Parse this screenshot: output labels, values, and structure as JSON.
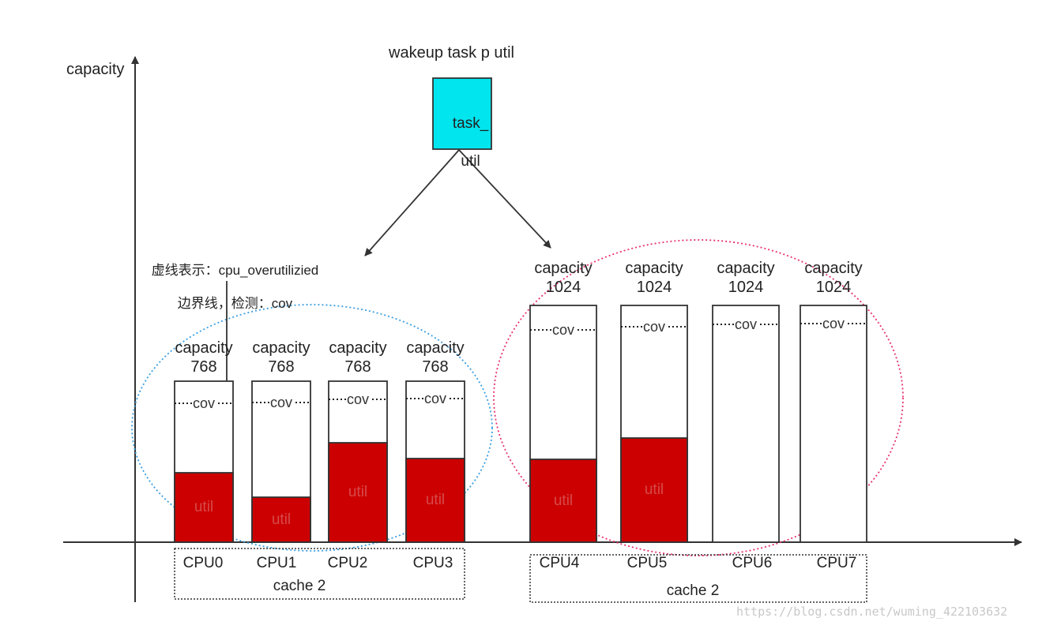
{
  "axis": {
    "y_label": "capacity"
  },
  "header": {
    "title": "wakeup task p util"
  },
  "task_box": {
    "line1": "task_",
    "line2": "util",
    "color": "#00e5ee"
  },
  "note": {
    "line1": "虚线表示：cpu_overutilizied",
    "line2": "边界线，检测：cov"
  },
  "labels": {
    "capacity": "capacity",
    "cov": "cov",
    "util": "util"
  },
  "colors": {
    "util_fill": "#cc0000",
    "little_cluster_ring": "#3a9ee0",
    "big_cluster_ring": "#e8326e"
  },
  "cpus": [
    {
      "name": "CPU0",
      "capacity": "768",
      "util_fraction": 0.43
    },
    {
      "name": "CPU1",
      "capacity": "768",
      "util_fraction": 0.28
    },
    {
      "name": "CPU2",
      "capacity": "768",
      "util_fraction": 0.62
    },
    {
      "name": "CPU3",
      "capacity": "768",
      "util_fraction": 0.52
    },
    {
      "name": "CPU4",
      "capacity": "1024",
      "util_fraction": 0.35
    },
    {
      "name": "CPU5",
      "capacity": "1024",
      "util_fraction": 0.44
    },
    {
      "name": "CPU6",
      "capacity": "1024",
      "util_fraction": 0
    },
    {
      "name": "CPU7",
      "capacity": "1024",
      "util_fraction": 0
    }
  ],
  "clusters": [
    {
      "cache_label": "cache 2"
    },
    {
      "cache_label": "cache 2"
    }
  ],
  "watermark": "https://blog.csdn.net/wuming_422103632"
}
